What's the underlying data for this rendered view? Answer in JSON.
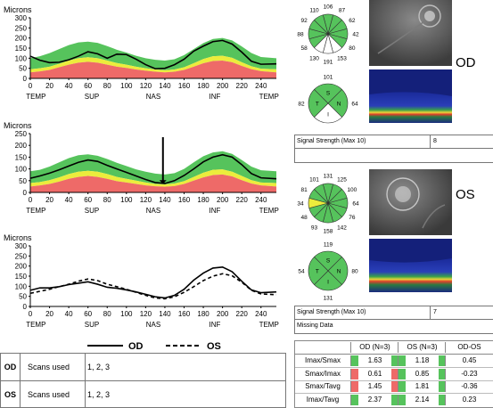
{
  "colors": {
    "green": "#56c35c",
    "yellow": "#ecec3c",
    "red": "#ee6a68",
    "white_band": "#ffffff"
  },
  "charts": {
    "od": {
      "title": "Microns",
      "y_ticks": [
        "0",
        "50",
        "100",
        "150",
        "200",
        "250",
        "300"
      ],
      "x_ticks": [
        "0",
        "20",
        "40",
        "60",
        "80",
        "100",
        "120",
        "140",
        "160",
        "180",
        "200",
        "220",
        "240"
      ],
      "region_labels": [
        "TEMP",
        "SUP",
        "NAS",
        "INF",
        "TEMP"
      ]
    },
    "os": {
      "title": "Microns",
      "y_ticks": [
        "0",
        "50",
        "100",
        "150",
        "200",
        "250"
      ],
      "x_ticks": [
        "0",
        "20",
        "40",
        "60",
        "80",
        "100",
        "120",
        "140",
        "160",
        "180",
        "200",
        "220",
        "240"
      ],
      "region_labels": [
        "TEMP",
        "SUP",
        "NAS",
        "INF",
        "TEMP"
      ]
    },
    "combined": {
      "title": "Microns",
      "y_ticks": [
        "0",
        "50",
        "100",
        "150",
        "200",
        "250",
        "300"
      ],
      "x_ticks": [
        "0",
        "20",
        "40",
        "60",
        "80",
        "100",
        "120",
        "140",
        "160",
        "180",
        "200",
        "220",
        "240"
      ],
      "region_labels": [
        "TEMP",
        "SUP",
        "NAS",
        "INF",
        "TEMP"
      ]
    }
  },
  "chart_data": [
    {
      "type": "area",
      "title": "",
      "ylabel": "Microns",
      "xlim": [
        0,
        256
      ],
      "ylim": [
        0,
        300
      ],
      "normative_bands": {
        "x": [
          0,
          10,
          20,
          30,
          40,
          50,
          60,
          70,
          80,
          90,
          100,
          110,
          120,
          130,
          140,
          150,
          160,
          170,
          180,
          190,
          200,
          210,
          220,
          230,
          240,
          256
        ],
        "p1": [
          30,
          35,
          42,
          55,
          68,
          78,
          82,
          78,
          68,
          58,
          52,
          44,
          38,
          33,
          30,
          33,
          42,
          58,
          75,
          86,
          88,
          80,
          62,
          46,
          36,
          30
        ],
        "p5": [
          45,
          50,
          58,
          72,
          88,
          100,
          105,
          100,
          88,
          76,
          68,
          58,
          50,
          44,
          40,
          44,
          55,
          75,
          96,
          110,
          112,
          102,
          80,
          60,
          48,
          45
        ],
        "p95": [
          100,
          110,
          125,
          145,
          165,
          178,
          182,
          176,
          160,
          142,
          128,
          112,
          100,
          92,
          88,
          95,
          115,
          145,
          175,
          195,
          200,
          188,
          158,
          126,
          106,
          100
        ]
      },
      "series": [
        {
          "x": [
            0,
            10,
            20,
            30,
            40,
            50,
            60,
            70,
            80,
            90,
            100,
            110,
            120,
            130,
            140,
            150,
            160,
            170,
            180,
            190,
            200,
            210,
            220,
            230,
            240,
            256
          ],
          "values": [
            110,
            90,
            78,
            80,
            92,
            110,
            132,
            122,
            100,
            120,
            118,
            95,
            68,
            48,
            50,
            68,
            95,
            135,
            160,
            182,
            188,
            170,
            130,
            85,
            70,
            72
          ]
        }
      ]
    },
    {
      "type": "area",
      "title": "",
      "ylabel": "Microns",
      "xlim": [
        0,
        256
      ],
      "ylim": [
        0,
        250
      ],
      "normative_bands": {
        "x": [
          0,
          10,
          20,
          30,
          40,
          50,
          60,
          70,
          80,
          90,
          100,
          110,
          120,
          130,
          140,
          150,
          160,
          170,
          180,
          190,
          200,
          210,
          220,
          230,
          240,
          256
        ],
        "p1": [
          25,
          30,
          36,
          46,
          58,
          66,
          70,
          66,
          58,
          48,
          42,
          36,
          30,
          26,
          24,
          27,
          36,
          50,
          64,
          74,
          76,
          68,
          52,
          38,
          30,
          25
        ],
        "p5": [
          40,
          44,
          52,
          64,
          78,
          88,
          92,
          88,
          78,
          66,
          58,
          50,
          42,
          36,
          34,
          38,
          48,
          66,
          84,
          96,
          98,
          88,
          70,
          52,
          42,
          40
        ],
        "p95": [
          90,
          96,
          110,
          128,
          146,
          158,
          162,
          156,
          142,
          126,
          112,
          98,
          88,
          80,
          76,
          82,
          100,
          128,
          154,
          170,
          175,
          164,
          138,
          110,
          94,
          90
        ]
      },
      "annotations": [
        "arrow at x≈138"
      ],
      "series": [
        {
          "x": [
            0,
            10,
            20,
            30,
            40,
            50,
            60,
            70,
            80,
            90,
            100,
            110,
            120,
            130,
            140,
            150,
            160,
            170,
            180,
            190,
            200,
            210,
            220,
            230,
            240,
            256
          ],
          "values": [
            60,
            70,
            82,
            96,
            112,
            128,
            138,
            132,
            115,
            100,
            85,
            70,
            55,
            42,
            38,
            50,
            72,
            100,
            130,
            150,
            160,
            150,
            118,
            80,
            62,
            58
          ]
        }
      ]
    },
    {
      "type": "line",
      "title": "",
      "ylabel": "Microns",
      "xlim": [
        0,
        256
      ],
      "ylim": [
        0,
        300
      ],
      "series": [
        {
          "name": "OD",
          "x": [
            0,
            10,
            20,
            30,
            40,
            50,
            60,
            70,
            80,
            90,
            100,
            110,
            120,
            130,
            140,
            150,
            160,
            170,
            180,
            190,
            200,
            210,
            220,
            230,
            240,
            256
          ],
          "values": [
            80,
            92,
            92,
            98,
            108,
            115,
            122,
            110,
            95,
            90,
            82,
            72,
            60,
            48,
            42,
            55,
            85,
            130,
            165,
            190,
            195,
            172,
            125,
            82,
            68,
            72
          ]
        },
        {
          "name": "OS",
          "x": [
            0,
            10,
            20,
            30,
            40,
            50,
            60,
            70,
            80,
            90,
            100,
            110,
            120,
            130,
            140,
            150,
            160,
            170,
            180,
            190,
            200,
            210,
            220,
            230,
            240,
            256
          ],
          "values": [
            65,
            75,
            85,
            98,
            110,
            125,
            136,
            128,
            110,
            98,
            85,
            70,
            55,
            42,
            38,
            48,
            70,
            98,
            128,
            150,
            162,
            152,
            120,
            80,
            62,
            58
          ]
        }
      ]
    }
  ],
  "legend": {
    "od": "OD",
    "os": "OS"
  },
  "od_panel": {
    "clock_values": [
      "106",
      "87",
      "62",
      "42",
      "80",
      "153",
      "191",
      "130",
      "58",
      "88",
      "92",
      "110"
    ],
    "quad_values": {
      "s": "101",
      "n": "64",
      "i": "",
      "t": "82"
    },
    "quad_letters": {
      "s": "S",
      "n": "N",
      "i": "I",
      "t": "T"
    },
    "eye_label": "OD",
    "signal_label": "Signal Strength (Max 10)",
    "signal_value": "8",
    "missing_data": ""
  },
  "os_panel": {
    "clock_values": [
      "131",
      "125",
      "100",
      "64",
      "76",
      "142",
      "158",
      "93",
      "48",
      "34",
      "81",
      "101"
    ],
    "quad_values": {
      "s": "119",
      "n": "80",
      "i": "131",
      "t": "54"
    },
    "quad_letters": {
      "s": "S",
      "n": "N",
      "i": "I",
      "t": "T"
    },
    "eye_label": "OS",
    "signal_label": "Signal Strength (Max 10)",
    "signal_value": "7",
    "missing_data": "Missing Data"
  },
  "scans": [
    {
      "eye": "OD",
      "label": "Scans used",
      "value": "1, 2, 3"
    },
    {
      "eye": "OS",
      "label": "Scans used",
      "value": "1, 2, 3"
    }
  ],
  "ratio_table": {
    "headers": [
      "",
      "OD (N=3)",
      "OS (N=3)",
      "OD-OS"
    ],
    "rows": [
      {
        "label": "Imax/Smax",
        "od": "1.63",
        "od_color": "#56c35c",
        "os": "1.18",
        "os_color": "#56c35c",
        "diff": "0.45"
      },
      {
        "label": "Smax/Imax",
        "od": "0.61",
        "od_color": "#ee6a68",
        "os": "0.85",
        "os_color": "#56c35c",
        "diff": "-0.23"
      },
      {
        "label": "Smax/Tavg",
        "od": "1.45",
        "od_color": "#ee6a68",
        "os": "1.81",
        "os_color": "#56c35c",
        "diff": "-0.36"
      },
      {
        "label": "Imax/Tavg",
        "od": "2.37",
        "od_color": "#56c35c",
        "os": "2.14",
        "os_color": "#56c35c",
        "diff": "0.23"
      }
    ]
  }
}
